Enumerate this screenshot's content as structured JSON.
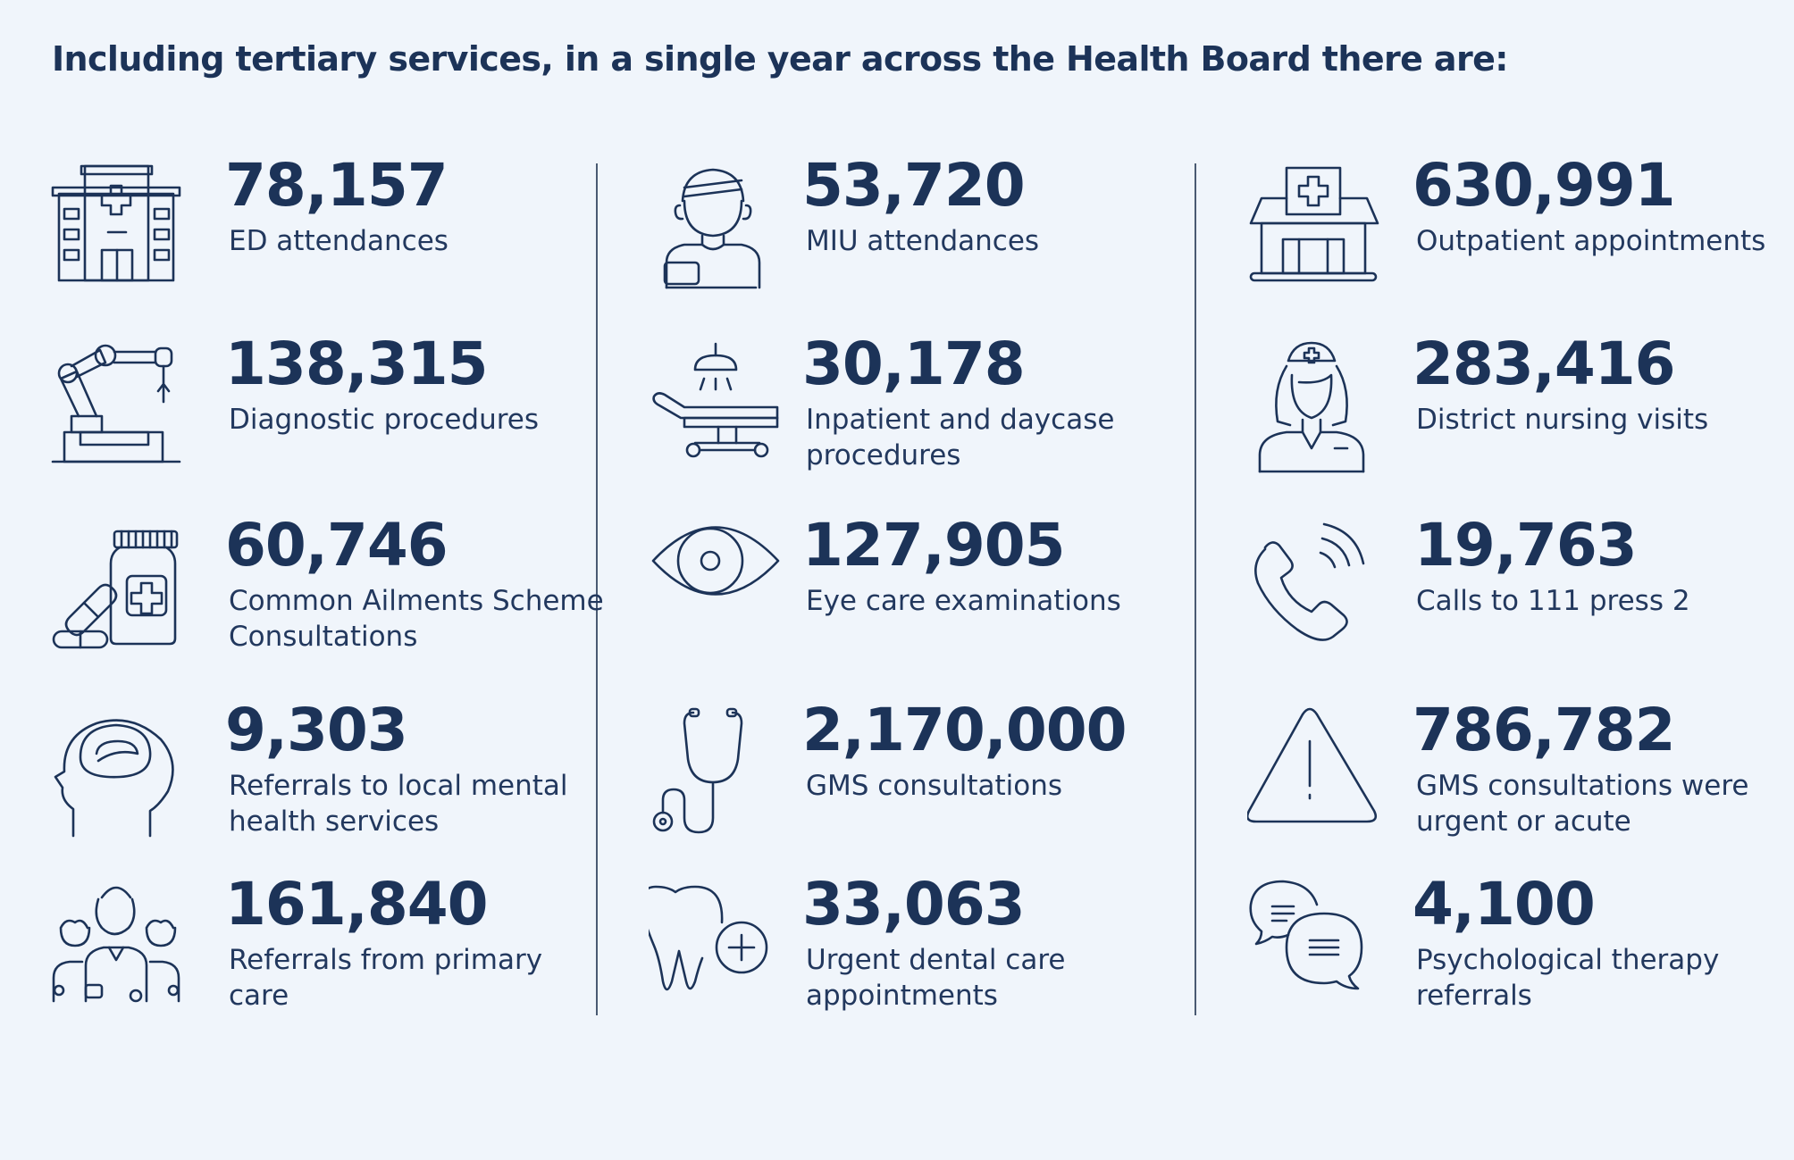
{
  "heading": "Including tertiary services, in a single year across the Health Board there are:",
  "colors": {
    "background": "#f0f5fb",
    "text": "#1c3358"
  },
  "stats": [
    {
      "icon": "hospital-icon",
      "value": "78,157",
      "label": "ED attendances"
    },
    {
      "icon": "injured-patient-icon",
      "value": "53,720",
      "label": "MIU attendances"
    },
    {
      "icon": "clinic-building-icon",
      "value": "630,991",
      "label": "Outpatient appointments"
    },
    {
      "icon": "robotic-arm-icon",
      "value": "138,315",
      "label": "Diagnostic procedures"
    },
    {
      "icon": "operating-table-icon",
      "value": "30,178",
      "label": "Inpatient and daycase procedures"
    },
    {
      "icon": "nurse-icon",
      "value": "283,416",
      "label": "District nursing visits"
    },
    {
      "icon": "medicine-pills-icon",
      "value": "60,746",
      "label": "Common Ailments Scheme Consultations"
    },
    {
      "icon": "eye-icon",
      "value": "127,905",
      "label": "Eye care examinations"
    },
    {
      "icon": "phone-call-icon",
      "value": "19,763",
      "label": "Calls to 111 press 2"
    },
    {
      "icon": "brain-head-icon",
      "value": "9,303",
      "label": "Referrals to local mental health services"
    },
    {
      "icon": "stethoscope-icon",
      "value": "2,170,000",
      "label": "GMS consultations"
    },
    {
      "icon": "warning-triangle-icon",
      "value": "786,782",
      "label": "GMS consultations were urgent or acute"
    },
    {
      "icon": "medical-team-icon",
      "value": "161,840",
      "label": "Referrals from primary care"
    },
    {
      "icon": "tooth-plus-icon",
      "value": "33,063",
      "label": "Urgent dental care appointments"
    },
    {
      "icon": "chat-bubbles-icon",
      "value": "4,100",
      "label": "Psychological therapy referrals"
    }
  ]
}
